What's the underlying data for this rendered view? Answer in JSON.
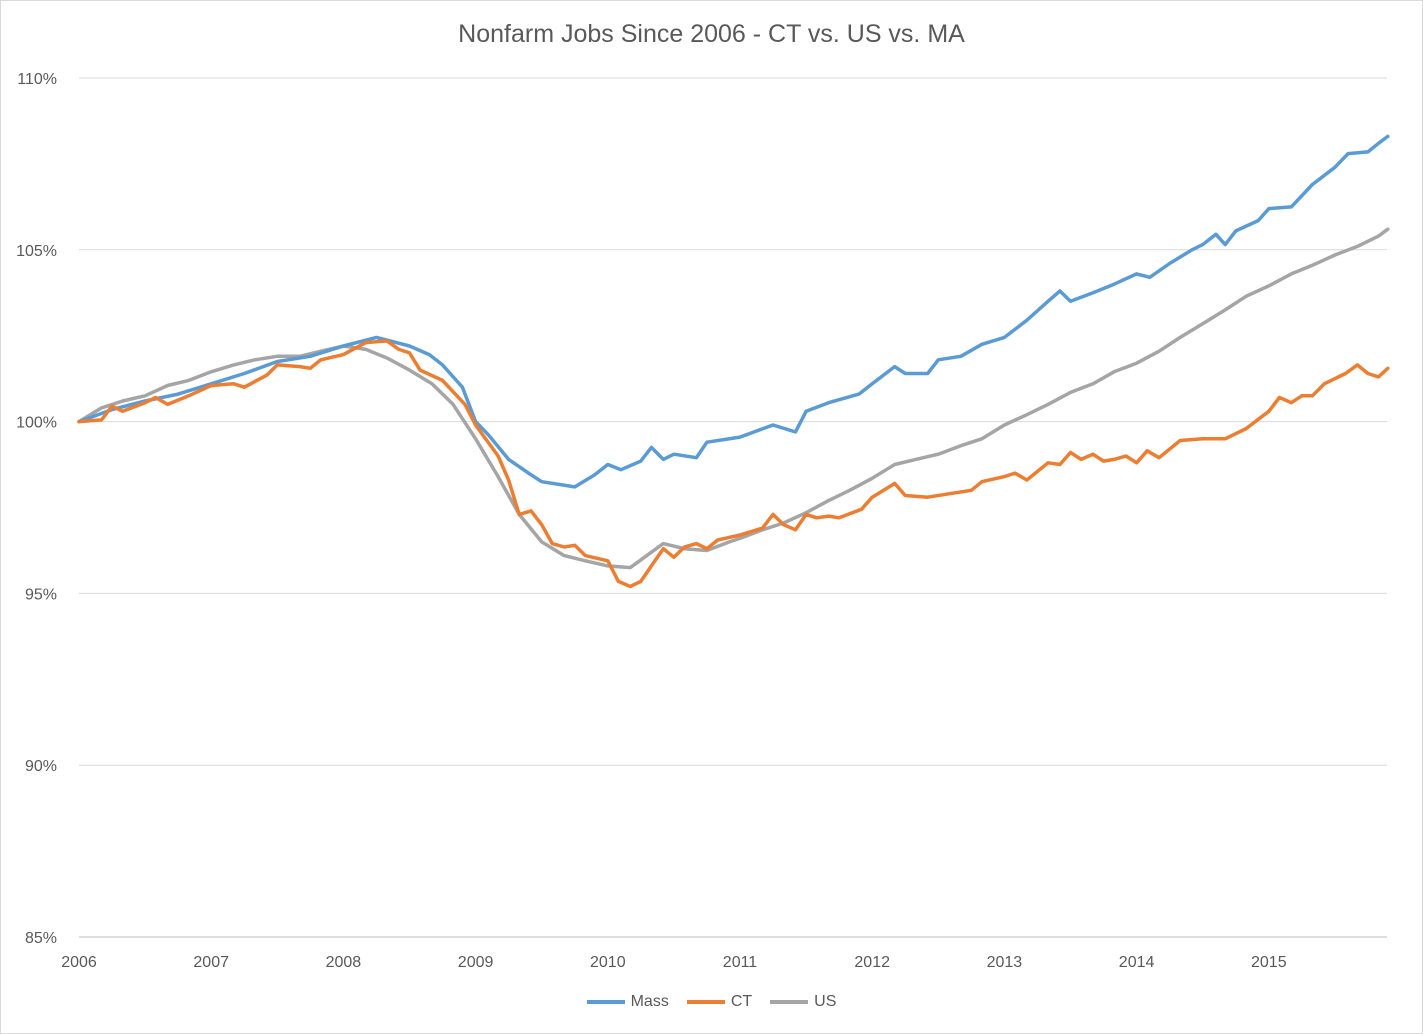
{
  "chart_data": {
    "type": "line",
    "title": "Nonfarm Jobs Since 2006 - CT vs. US vs. MA",
    "xlabel": "",
    "ylabel": "",
    "ylim": [
      85,
      110
    ],
    "xlim": [
      2006,
      2015.9
    ],
    "y_ticks": [
      "85%",
      "90%",
      "95%",
      "100%",
      "105%",
      "110%"
    ],
    "y_tick_values": [
      85,
      90,
      95,
      100,
      105,
      110
    ],
    "x_ticks": [
      "2006",
      "2007",
      "2008",
      "2009",
      "2010",
      "2011",
      "2012",
      "2013",
      "2014",
      "2015"
    ],
    "grid": "horizontal",
    "legend_position": "bottom",
    "series": [
      {
        "name": "Mass",
        "color": "#5b9bd5",
        "points": [
          [
            2006.0,
            100.0
          ],
          [
            2006.25,
            100.35
          ],
          [
            2006.5,
            100.6
          ],
          [
            2006.75,
            100.8
          ],
          [
            2007.0,
            101.1
          ],
          [
            2007.25,
            101.4
          ],
          [
            2007.5,
            101.75
          ],
          [
            2007.75,
            101.9
          ],
          [
            2008.0,
            102.2
          ],
          [
            2008.25,
            102.45
          ],
          [
            2008.5,
            102.2
          ],
          [
            2008.65,
            101.95
          ],
          [
            2008.75,
            101.65
          ],
          [
            2008.9,
            101.0
          ],
          [
            2009.0,
            100.0
          ],
          [
            2009.1,
            99.6
          ],
          [
            2009.25,
            98.9
          ],
          [
            2009.4,
            98.5
          ],
          [
            2009.5,
            98.25
          ],
          [
            2009.75,
            98.1
          ],
          [
            2009.9,
            98.45
          ],
          [
            2010.0,
            98.75
          ],
          [
            2010.1,
            98.6
          ],
          [
            2010.25,
            98.85
          ],
          [
            2010.33,
            99.25
          ],
          [
            2010.42,
            98.9
          ],
          [
            2010.5,
            99.05
          ],
          [
            2010.67,
            98.95
          ],
          [
            2010.75,
            99.4
          ],
          [
            2011.0,
            99.55
          ],
          [
            2011.25,
            99.9
          ],
          [
            2011.42,
            99.7
          ],
          [
            2011.5,
            100.3
          ],
          [
            2011.67,
            100.55
          ],
          [
            2011.9,
            100.8
          ],
          [
            2012.0,
            101.1
          ],
          [
            2012.17,
            101.6
          ],
          [
            2012.25,
            101.4
          ],
          [
            2012.42,
            101.4
          ],
          [
            2012.5,
            101.8
          ],
          [
            2012.67,
            101.9
          ],
          [
            2012.83,
            102.25
          ],
          [
            2013.0,
            102.45
          ],
          [
            2013.17,
            102.95
          ],
          [
            2013.33,
            103.5
          ],
          [
            2013.42,
            103.8
          ],
          [
            2013.5,
            103.5
          ],
          [
            2013.67,
            103.75
          ],
          [
            2013.83,
            104.0
          ],
          [
            2014.0,
            104.3
          ],
          [
            2014.1,
            104.2
          ],
          [
            2014.25,
            104.6
          ],
          [
            2014.42,
            105.0
          ],
          [
            2014.5,
            105.15
          ],
          [
            2014.6,
            105.45
          ],
          [
            2014.67,
            105.15
          ],
          [
            2014.75,
            105.55
          ],
          [
            2014.92,
            105.85
          ],
          [
            2015.0,
            106.2
          ],
          [
            2015.17,
            106.25
          ],
          [
            2015.33,
            106.9
          ],
          [
            2015.5,
            107.4
          ],
          [
            2015.6,
            107.8
          ],
          [
            2015.75,
            107.85
          ],
          [
            2015.83,
            108.1
          ],
          [
            2015.9,
            108.3
          ]
        ]
      },
      {
        "name": "CT",
        "color": "#ed7d31",
        "points": [
          [
            2006.0,
            100.0
          ],
          [
            2006.17,
            100.05
          ],
          [
            2006.25,
            100.45
          ],
          [
            2006.33,
            100.3
          ],
          [
            2006.5,
            100.55
          ],
          [
            2006.58,
            100.7
          ],
          [
            2006.67,
            100.5
          ],
          [
            2006.83,
            100.75
          ],
          [
            2007.0,
            101.05
          ],
          [
            2007.17,
            101.1
          ],
          [
            2007.25,
            101.0
          ],
          [
            2007.42,
            101.35
          ],
          [
            2007.5,
            101.65
          ],
          [
            2007.67,
            101.6
          ],
          [
            2007.75,
            101.55
          ],
          [
            2007.83,
            101.8
          ],
          [
            2008.0,
            101.95
          ],
          [
            2008.17,
            102.3
          ],
          [
            2008.33,
            102.35
          ],
          [
            2008.42,
            102.1
          ],
          [
            2008.5,
            102.0
          ],
          [
            2008.58,
            101.5
          ],
          [
            2008.75,
            101.2
          ],
          [
            2008.92,
            100.5
          ],
          [
            2009.0,
            99.9
          ],
          [
            2009.17,
            99.0
          ],
          [
            2009.25,
            98.3
          ],
          [
            2009.33,
            97.3
          ],
          [
            2009.42,
            97.4
          ],
          [
            2009.5,
            97.0
          ],
          [
            2009.58,
            96.45
          ],
          [
            2009.67,
            96.35
          ],
          [
            2009.75,
            96.4
          ],
          [
            2009.83,
            96.1
          ],
          [
            2010.0,
            95.95
          ],
          [
            2010.08,
            95.35
          ],
          [
            2010.17,
            95.2
          ],
          [
            2010.25,
            95.35
          ],
          [
            2010.33,
            95.8
          ],
          [
            2010.42,
            96.3
          ],
          [
            2010.5,
            96.05
          ],
          [
            2010.58,
            96.35
          ],
          [
            2010.67,
            96.45
          ],
          [
            2010.75,
            96.3
          ],
          [
            2010.83,
            96.55
          ],
          [
            2011.0,
            96.7
          ],
          [
            2011.17,
            96.9
          ],
          [
            2011.25,
            97.3
          ],
          [
            2011.33,
            97.0
          ],
          [
            2011.42,
            96.85
          ],
          [
            2011.5,
            97.3
          ],
          [
            2011.58,
            97.2
          ],
          [
            2011.67,
            97.25
          ],
          [
            2011.75,
            97.2
          ],
          [
            2011.92,
            97.45
          ],
          [
            2012.0,
            97.8
          ],
          [
            2012.17,
            98.2
          ],
          [
            2012.25,
            97.85
          ],
          [
            2012.42,
            97.8
          ],
          [
            2012.58,
            97.9
          ],
          [
            2012.75,
            98.0
          ],
          [
            2012.83,
            98.25
          ],
          [
            2013.0,
            98.4
          ],
          [
            2013.08,
            98.5
          ],
          [
            2013.17,
            98.3
          ],
          [
            2013.33,
            98.8
          ],
          [
            2013.42,
            98.75
          ],
          [
            2013.5,
            99.1
          ],
          [
            2013.58,
            98.9
          ],
          [
            2013.67,
            99.05
          ],
          [
            2013.75,
            98.85
          ],
          [
            2013.83,
            98.9
          ],
          [
            2013.92,
            99.0
          ],
          [
            2014.0,
            98.8
          ],
          [
            2014.08,
            99.15
          ],
          [
            2014.17,
            98.95
          ],
          [
            2014.33,
            99.45
          ],
          [
            2014.5,
            99.5
          ],
          [
            2014.67,
            99.5
          ],
          [
            2014.83,
            99.8
          ],
          [
            2015.0,
            100.3
          ],
          [
            2015.08,
            100.7
          ],
          [
            2015.17,
            100.55
          ],
          [
            2015.25,
            100.75
          ],
          [
            2015.33,
            100.75
          ],
          [
            2015.42,
            101.1
          ],
          [
            2015.58,
            101.4
          ],
          [
            2015.67,
            101.65
          ],
          [
            2015.75,
            101.4
          ],
          [
            2015.83,
            101.3
          ],
          [
            2015.9,
            101.55
          ]
        ]
      },
      {
        "name": "US",
        "color": "#a5a5a5",
        "points": [
          [
            2006.0,
            100.0
          ],
          [
            2006.17,
            100.4
          ],
          [
            2006.33,
            100.6
          ],
          [
            2006.5,
            100.75
          ],
          [
            2006.67,
            101.05
          ],
          [
            2006.83,
            101.2
          ],
          [
            2007.0,
            101.45
          ],
          [
            2007.17,
            101.65
          ],
          [
            2007.33,
            101.8
          ],
          [
            2007.5,
            101.9
          ],
          [
            2007.67,
            101.9
          ],
          [
            2007.83,
            102.05
          ],
          [
            2008.0,
            102.2
          ],
          [
            2008.17,
            102.1
          ],
          [
            2008.33,
            101.85
          ],
          [
            2008.5,
            101.5
          ],
          [
            2008.67,
            101.1
          ],
          [
            2008.83,
            100.5
          ],
          [
            2009.0,
            99.5
          ],
          [
            2009.17,
            98.4
          ],
          [
            2009.33,
            97.3
          ],
          [
            2009.5,
            96.5
          ],
          [
            2009.67,
            96.1
          ],
          [
            2009.83,
            95.95
          ],
          [
            2010.0,
            95.8
          ],
          [
            2010.17,
            95.75
          ],
          [
            2010.33,
            96.2
          ],
          [
            2010.42,
            96.45
          ],
          [
            2010.58,
            96.3
          ],
          [
            2010.75,
            96.25
          ],
          [
            2010.92,
            96.5
          ],
          [
            2011.0,
            96.6
          ],
          [
            2011.17,
            96.85
          ],
          [
            2011.33,
            97.05
          ],
          [
            2011.5,
            97.35
          ],
          [
            2011.67,
            97.7
          ],
          [
            2011.83,
            98.0
          ],
          [
            2012.0,
            98.35
          ],
          [
            2012.17,
            98.75
          ],
          [
            2012.33,
            98.9
          ],
          [
            2012.5,
            99.05
          ],
          [
            2012.67,
            99.3
          ],
          [
            2012.83,
            99.5
          ],
          [
            2013.0,
            99.9
          ],
          [
            2013.17,
            100.2
          ],
          [
            2013.33,
            100.5
          ],
          [
            2013.5,
            100.85
          ],
          [
            2013.67,
            101.1
          ],
          [
            2013.83,
            101.45
          ],
          [
            2014.0,
            101.7
          ],
          [
            2014.17,
            102.05
          ],
          [
            2014.33,
            102.45
          ],
          [
            2014.5,
            102.85
          ],
          [
            2014.67,
            103.25
          ],
          [
            2014.83,
            103.65
          ],
          [
            2015.0,
            103.95
          ],
          [
            2015.17,
            104.3
          ],
          [
            2015.33,
            104.55
          ],
          [
            2015.5,
            104.85
          ],
          [
            2015.67,
            105.1
          ],
          [
            2015.83,
            105.4
          ],
          [
            2015.9,
            105.6
          ]
        ]
      }
    ]
  }
}
